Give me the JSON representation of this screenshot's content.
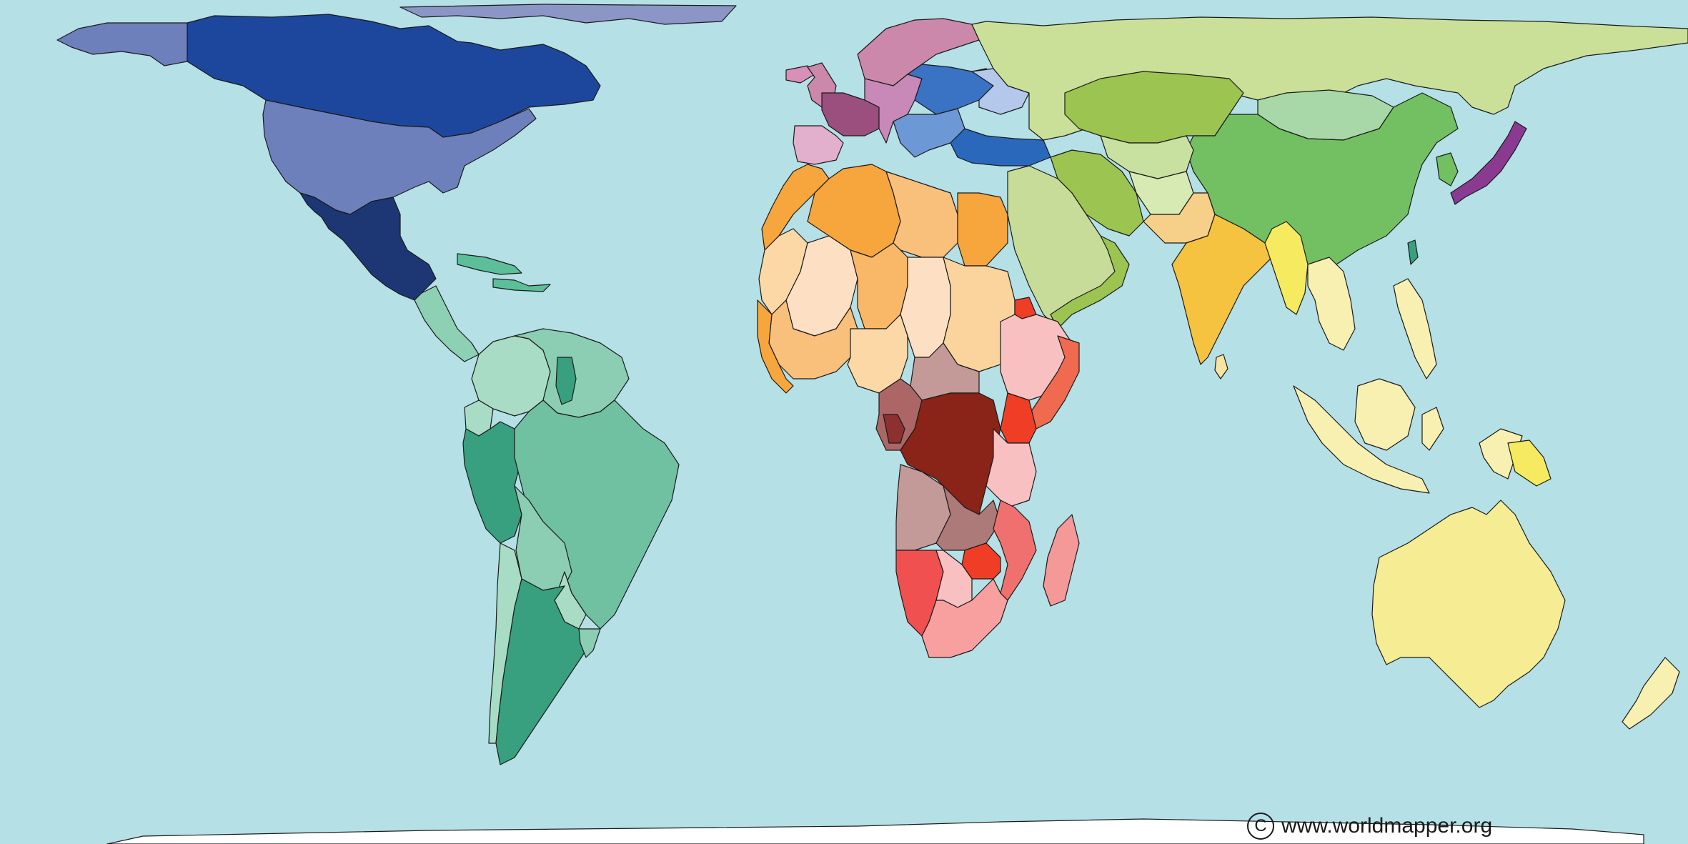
{
  "map": {
    "credit_url": "www.worldmapper.org",
    "copyright_glyph": "C",
    "ocean_color": "#b4e0e6",
    "legend": "none",
    "regions": [
      {
        "name": "antarctica",
        "color": "#ffffff"
      },
      {
        "name": "greenland",
        "color": "#8c96c6"
      },
      {
        "name": "alaska",
        "color": "#6e80bc"
      },
      {
        "name": "canada",
        "color": "#1c479c"
      },
      {
        "name": "united-states",
        "color": "#6e80bc"
      },
      {
        "name": "mexico",
        "color": "#1c3774"
      },
      {
        "name": "central-america",
        "color": "#8ed0b4"
      },
      {
        "name": "caribbean",
        "color": "#5cbf9a"
      },
      {
        "name": "colombia",
        "color": "#a8dcc4"
      },
      {
        "name": "venezuela-guyanas",
        "color": "#8cceb4"
      },
      {
        "name": "suriname",
        "color": "#38a07e"
      },
      {
        "name": "ecuador",
        "color": "#a8dcc4"
      },
      {
        "name": "peru",
        "color": "#38a07e"
      },
      {
        "name": "brazil",
        "color": "#70c0a2"
      },
      {
        "name": "bolivia",
        "color": "#8cceb4"
      },
      {
        "name": "paraguay",
        "color": "#a8dcc4"
      },
      {
        "name": "chile",
        "color": "#a8dcc4"
      },
      {
        "name": "argentina",
        "color": "#38a07e"
      },
      {
        "name": "uruguay",
        "color": "#8cceb4"
      },
      {
        "name": "iceland",
        "color": "#d890b8"
      },
      {
        "name": "scandinavia",
        "color": "#cc88aa"
      },
      {
        "name": "british-isles",
        "color": "#cc88aa"
      },
      {
        "name": "france",
        "color": "#9a4f7e"
      },
      {
        "name": "iberia",
        "color": "#e2b0cc"
      },
      {
        "name": "central-europe",
        "color": "#c888b8"
      },
      {
        "name": "eastern-europe",
        "color": "#3a72c4"
      },
      {
        "name": "balkans",
        "color": "#6d98d6"
      },
      {
        "name": "ukraine",
        "color": "#b4c8ec"
      },
      {
        "name": "turkey",
        "color": "#2a68bc"
      },
      {
        "name": "russia",
        "color": "#cadf98"
      },
      {
        "name": "kazakhstan",
        "color": "#9cc450"
      },
      {
        "name": "mongolia",
        "color": "#a8d8a8"
      },
      {
        "name": "china",
        "color": "#72c062"
      },
      {
        "name": "korea",
        "color": "#72c062"
      },
      {
        "name": "japan",
        "color": "#8a3a90"
      },
      {
        "name": "central-asia",
        "color": "#c8e0a0"
      },
      {
        "name": "iran",
        "color": "#9cc450"
      },
      {
        "name": "afghanistan",
        "color": "#d8eab4"
      },
      {
        "name": "pakistan",
        "color": "#f6cf88"
      },
      {
        "name": "india",
        "color": "#f6c340"
      },
      {
        "name": "myanmar",
        "color": "#f6eb60"
      },
      {
        "name": "thailand-indochina",
        "color": "#f8f0b0"
      },
      {
        "name": "arabian-peninsula",
        "color": "#c6dc98"
      },
      {
        "name": "yemen-oman",
        "color": "#9cc450"
      },
      {
        "name": "sri-lanka",
        "color": "#f6e4a0"
      },
      {
        "name": "taiwan",
        "color": "#38a07e"
      },
      {
        "name": "philippines",
        "color": "#f8f0b0"
      },
      {
        "name": "sumatra-java",
        "color": "#f8f0b0"
      },
      {
        "name": "borneo",
        "color": "#f8f0b0"
      },
      {
        "name": "sulawesi",
        "color": "#f8f0b0"
      },
      {
        "name": "new-guinea",
        "color": "#f8f0b0"
      },
      {
        "name": "papua-new-guinea",
        "color": "#f6eb60"
      },
      {
        "name": "australia",
        "color": "#f6ec94"
      },
      {
        "name": "new-zealand",
        "color": "#f8f0b0"
      },
      {
        "name": "morocco-west",
        "color": "#f6a63c"
      },
      {
        "name": "algeria",
        "color": "#f6a63c"
      },
      {
        "name": "libya",
        "color": "#f9c07c"
      },
      {
        "name": "egypt",
        "color": "#f6a63c"
      },
      {
        "name": "mauritania",
        "color": "#fcd8a6"
      },
      {
        "name": "mali",
        "color": "#fde0c4"
      },
      {
        "name": "niger",
        "color": "#f9b868"
      },
      {
        "name": "chad",
        "color": "#fde0c4"
      },
      {
        "name": "sudan",
        "color": "#fbd39c"
      },
      {
        "name": "west-africa",
        "color": "#f9c07c"
      },
      {
        "name": "nigeria",
        "color": "#fcd8a6"
      },
      {
        "name": "senegal-guinea",
        "color": "#f6a63c"
      },
      {
        "name": "ethiopia",
        "color": "#f8c0c0"
      },
      {
        "name": "eritrea",
        "color": "#f03e26"
      },
      {
        "name": "somalia",
        "color": "#f06a50"
      },
      {
        "name": "kenya",
        "color": "#f03e26"
      },
      {
        "name": "central-african-rep",
        "color": "#c39a98"
      },
      {
        "name": "cameroon-gabon",
        "color": "#ac6666"
      },
      {
        "name": "congo-west",
        "color": "#8c3030"
      },
      {
        "name": "dr-congo",
        "color": "#8a2418"
      },
      {
        "name": "tanzania",
        "color": "#f8c0c0"
      },
      {
        "name": "angola",
        "color": "#c39a98"
      },
      {
        "name": "zambia",
        "color": "#ac7a78"
      },
      {
        "name": "malawi-mozambique",
        "color": "#f07070"
      },
      {
        "name": "zimbabwe",
        "color": "#f03e26"
      },
      {
        "name": "namibia",
        "color": "#f05050"
      },
      {
        "name": "botswana",
        "color": "#f8c0c0"
      },
      {
        "name": "south-africa",
        "color": "#f8a0a0"
      },
      {
        "name": "madagascar",
        "color": "#f49898"
      }
    ]
  }
}
